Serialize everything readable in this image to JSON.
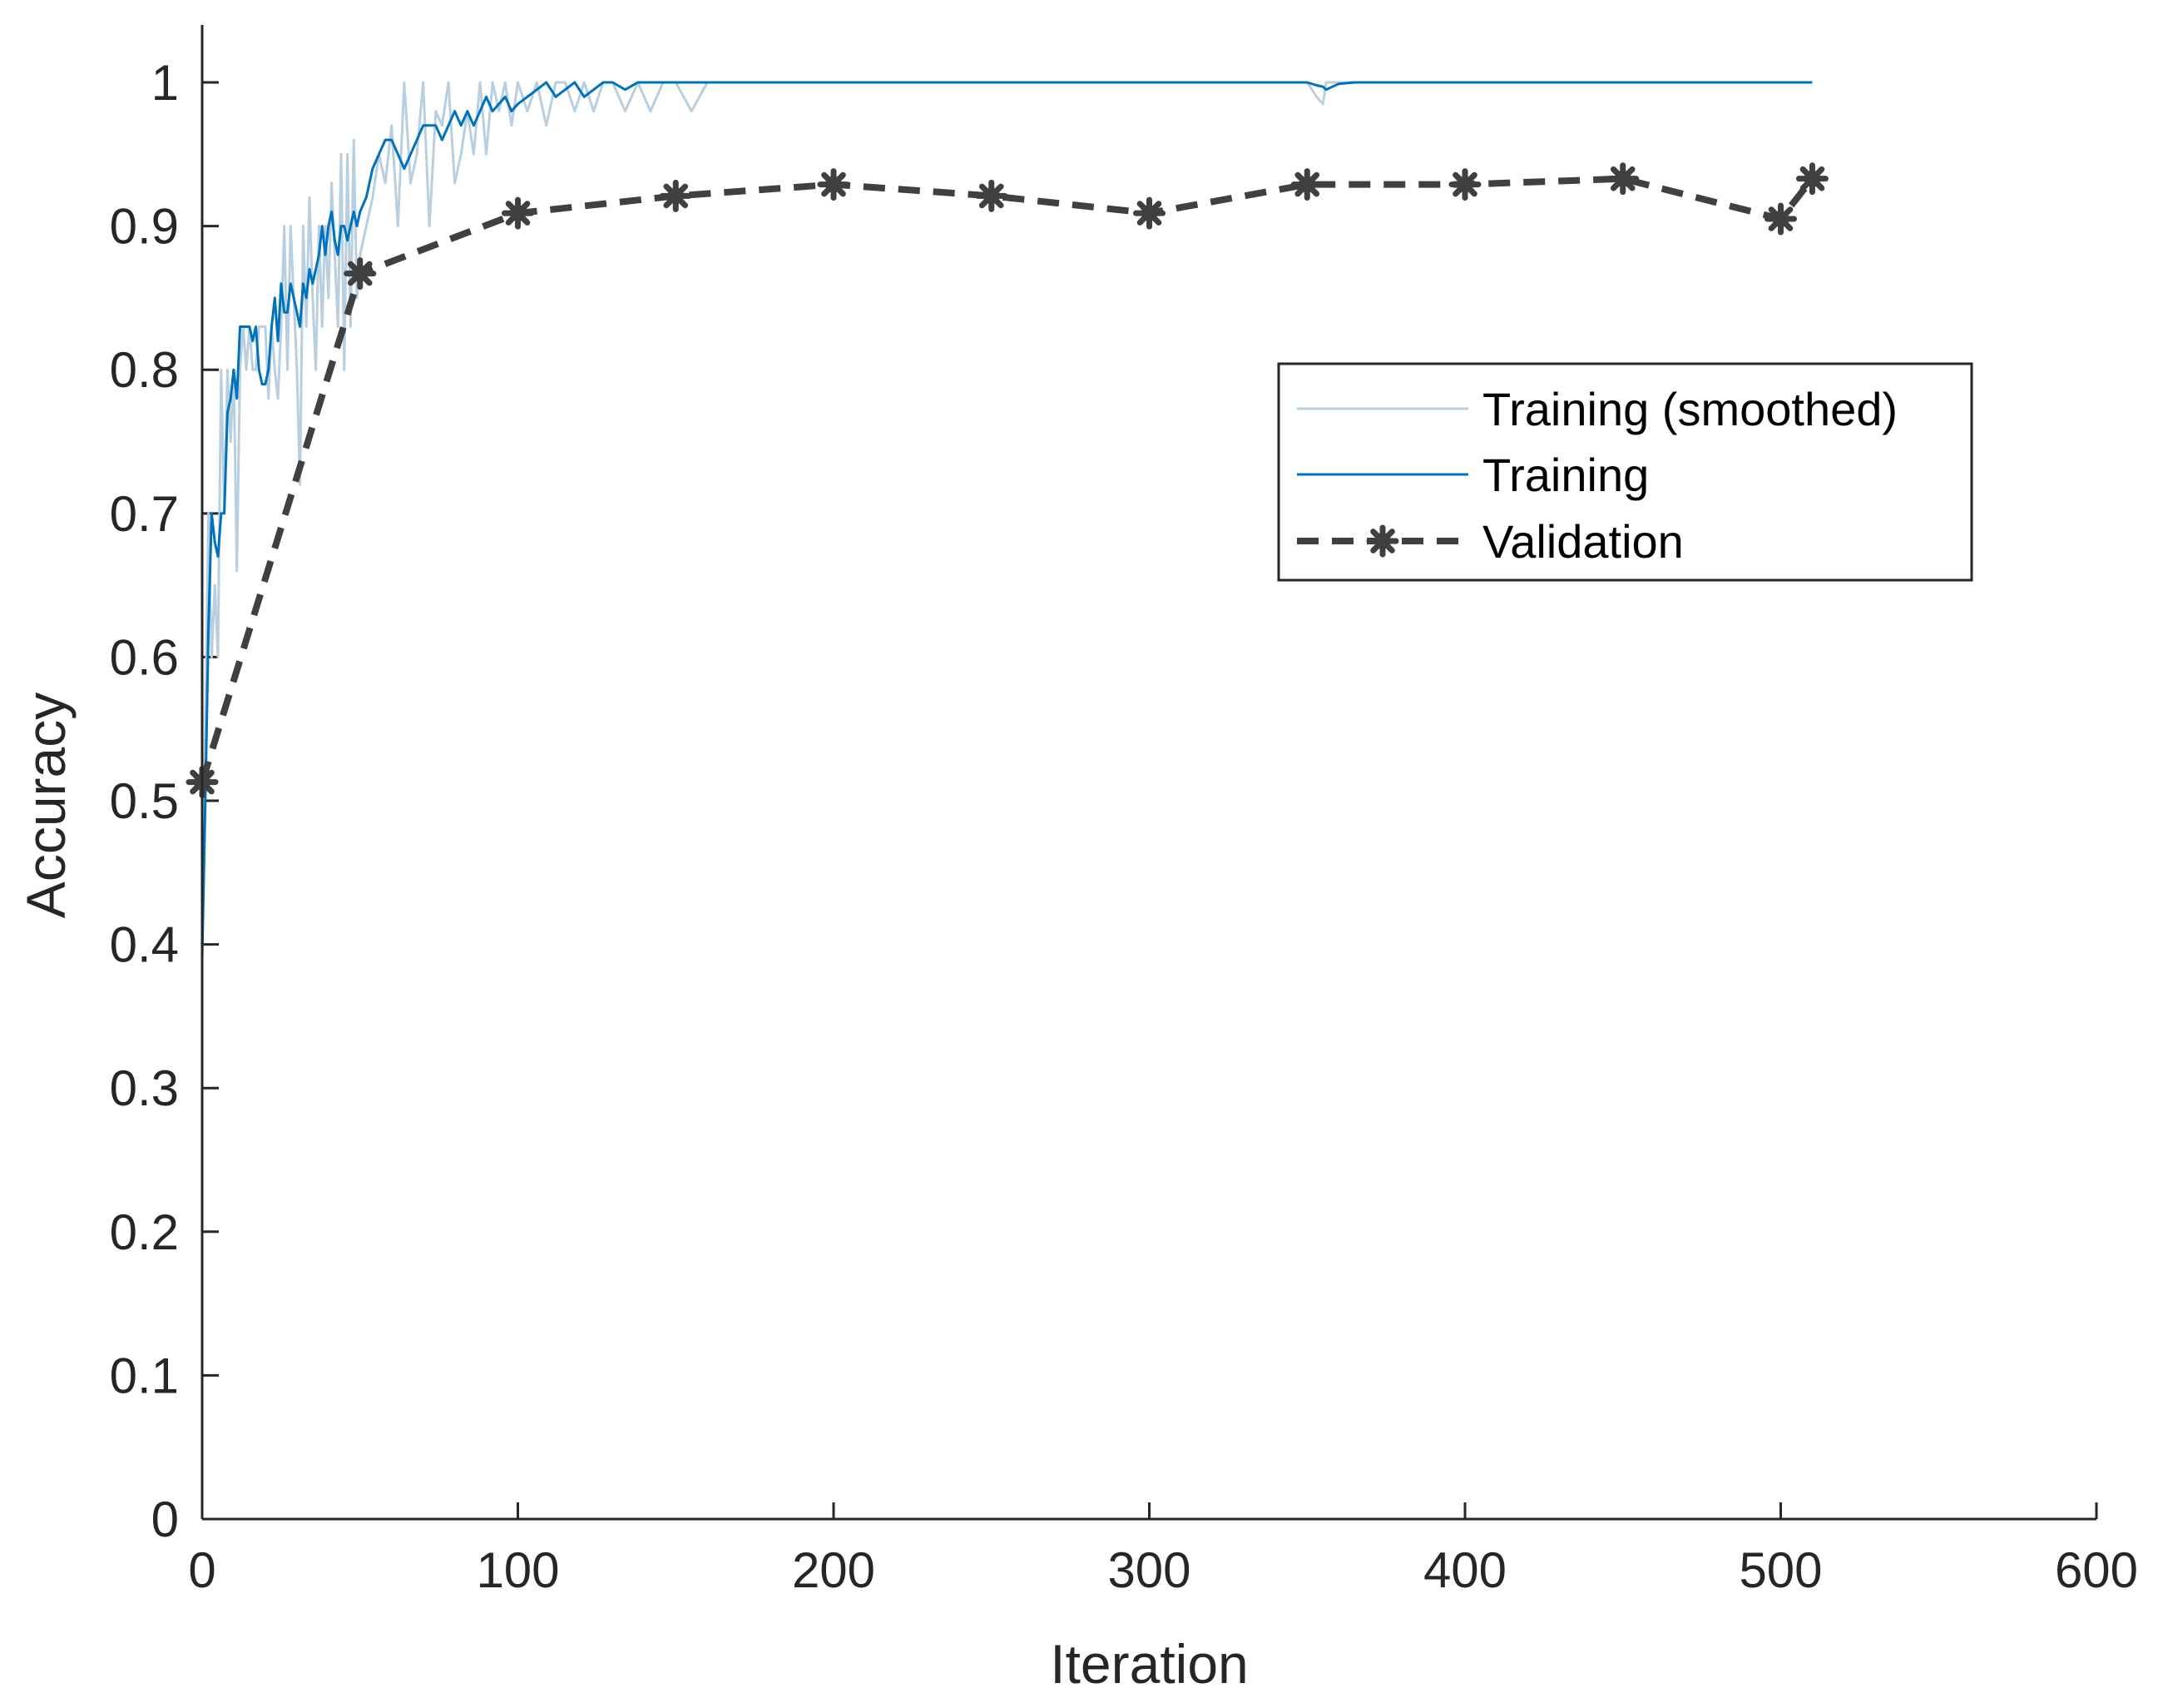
{
  "chart_data": {
    "type": "line",
    "title": "",
    "xlabel": "Iteration",
    "ylabel": "Accuracy",
    "xlim": [
      0,
      600
    ],
    "ylim": [
      0,
      1.04
    ],
    "xticks": [
      "0",
      "100",
      "200",
      "300",
      "400",
      "500",
      "600"
    ],
    "yticks": [
      "0",
      "0.1",
      "0.2",
      "0.3",
      "0.4",
      "0.5",
      "0.6",
      "0.7",
      "0.8",
      "0.9",
      "1"
    ],
    "grid": false,
    "legend_position": "upper-right-inside",
    "series": [
      {
        "name": "Training (smoothed)",
        "color": "#b8cfe0",
        "style": "solid",
        "x": [
          0,
          1,
          2,
          3,
          4,
          5,
          6,
          7,
          8,
          9,
          10,
          11,
          12,
          13,
          14,
          15,
          16,
          17,
          18,
          19,
          20,
          21,
          22,
          23,
          24,
          25,
          26,
          27,
          28,
          29,
          30,
          31,
          32,
          33,
          34,
          35,
          36,
          37,
          38,
          39,
          40,
          41,
          42,
          43,
          44,
          45,
          46,
          47,
          48,
          49,
          50,
          52,
          54,
          56,
          58,
          60,
          62,
          64,
          66,
          68,
          70,
          72,
          74,
          76,
          78,
          80,
          82,
          84,
          86,
          88,
          90,
          92,
          94,
          96,
          98,
          100,
          103,
          106,
          109,
          112,
          115,
          118,
          121,
          124,
          127,
          130,
          134,
          138,
          142,
          146,
          150,
          155,
          160,
          200,
          250,
          300,
          350,
          353,
          355,
          356,
          358,
          360,
          365,
          370,
          400,
          450,
          500,
          510
        ],
        "values": [
          0.4,
          0.55,
          0.7,
          0.6,
          0.65,
          0.6,
          0.8,
          0.7,
          0.8,
          0.75,
          0.8,
          0.66,
          0.8,
          0.83,
          0.8,
          0.83,
          0.8,
          0.8,
          0.83,
          0.83,
          0.83,
          0.78,
          0.83,
          0.8,
          0.78,
          0.83,
          0.9,
          0.8,
          0.9,
          0.85,
          0.8,
          0.72,
          0.9,
          0.83,
          0.92,
          0.85,
          0.8,
          0.9,
          0.83,
          0.9,
          0.85,
          0.93,
          0.88,
          0.83,
          0.95,
          0.8,
          0.95,
          0.83,
          0.96,
          0.85,
          0.88,
          0.9,
          0.92,
          0.95,
          0.93,
          0.97,
          0.9,
          1.0,
          0.93,
          0.95,
          1.0,
          0.9,
          0.98,
          0.97,
          1.0,
          0.93,
          0.95,
          0.98,
          0.95,
          1.0,
          0.95,
          1.0,
          0.98,
          1.0,
          0.97,
          1.0,
          0.98,
          1.0,
          0.97,
          1.0,
          1.0,
          0.98,
          1.0,
          0.98,
          1.0,
          1.0,
          0.98,
          1.0,
          0.98,
          1.0,
          1.0,
          0.98,
          1.0,
          1.0,
          1.0,
          1.0,
          1.0,
          0.99,
          0.985,
          1.0,
          1.0,
          1.0,
          1.0,
          1.0,
          1.0,
          1.0,
          1.0,
          1.0
        ]
      },
      {
        "name": "Training",
        "color": "#0072bd",
        "style": "solid",
        "x": [
          0,
          1,
          2,
          3,
          4,
          5,
          6,
          7,
          8,
          9,
          10,
          11,
          12,
          13,
          14,
          15,
          16,
          17,
          18,
          19,
          20,
          21,
          22,
          23,
          24,
          25,
          26,
          27,
          28,
          29,
          30,
          31,
          32,
          33,
          34,
          35,
          36,
          37,
          38,
          39,
          40,
          41,
          42,
          43,
          44,
          45,
          46,
          47,
          48,
          49,
          50,
          52,
          54,
          56,
          58,
          60,
          62,
          64,
          66,
          68,
          70,
          72,
          74,
          76,
          78,
          80,
          82,
          84,
          86,
          88,
          90,
          92,
          94,
          96,
          98,
          100,
          103,
          106,
          109,
          112,
          115,
          118,
          121,
          124,
          127,
          130,
          134,
          138,
          142,
          146,
          150,
          155,
          160,
          200,
          250,
          300,
          350,
          353,
          355,
          356,
          358,
          360,
          365,
          370,
          400,
          450,
          500,
          510
        ],
        "values": [
          0.39,
          0.5,
          0.62,
          0.7,
          0.68,
          0.67,
          0.7,
          0.7,
          0.77,
          0.78,
          0.8,
          0.78,
          0.83,
          0.83,
          0.83,
          0.83,
          0.82,
          0.83,
          0.8,
          0.79,
          0.79,
          0.8,
          0.83,
          0.85,
          0.82,
          0.86,
          0.84,
          0.84,
          0.86,
          0.85,
          0.84,
          0.83,
          0.86,
          0.85,
          0.87,
          0.86,
          0.87,
          0.88,
          0.9,
          0.88,
          0.9,
          0.91,
          0.89,
          0.88,
          0.9,
          0.9,
          0.89,
          0.9,
          0.91,
          0.9,
          0.91,
          0.92,
          0.94,
          0.95,
          0.96,
          0.96,
          0.95,
          0.94,
          0.95,
          0.96,
          0.97,
          0.97,
          0.97,
          0.96,
          0.97,
          0.98,
          0.97,
          0.98,
          0.97,
          0.98,
          0.99,
          0.98,
          0.985,
          0.99,
          0.98,
          0.985,
          0.99,
          0.995,
          1.0,
          0.99,
          0.995,
          1.0,
          0.99,
          0.995,
          1.0,
          1.0,
          0.995,
          1.0,
          1.0,
          1.0,
          1.0,
          1.0,
          1.0,
          1.0,
          1.0,
          1.0,
          1.0,
          0.998,
          0.997,
          0.995,
          0.997,
          0.999,
          1.0,
          1.0,
          1.0,
          1.0,
          1.0,
          1.0
        ]
      },
      {
        "name": "Validation",
        "color": "#404040",
        "style": "dashed",
        "marker": "asterisk",
        "x": [
          0,
          50,
          100,
          150,
          200,
          250,
          300,
          350,
          400,
          450,
          500,
          510
        ],
        "values": [
          0.513,
          0.867,
          0.909,
          0.921,
          0.929,
          0.921,
          0.909,
          0.929,
          0.929,
          0.933,
          0.905,
          0.933
        ]
      }
    ]
  }
}
